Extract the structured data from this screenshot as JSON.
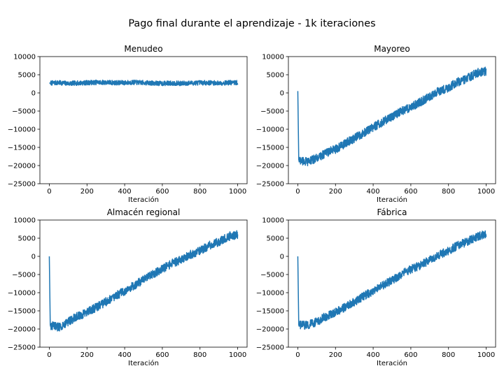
{
  "figure": {
    "suptitle": "Pago final durante el aprendizaje - 1k iteraciones"
  },
  "chart_data": [
    {
      "type": "line",
      "title": "Menudeo",
      "xlabel": "Iteración",
      "ylabel": "",
      "xlim": [
        -50,
        1050
      ],
      "ylim": [
        -25000,
        10000
      ],
      "xticks": [
        0,
        200,
        400,
        600,
        800,
        1000
      ],
      "yticks": [
        -25000,
        -20000,
        -15000,
        -10000,
        -5000,
        0,
        5000,
        10000
      ],
      "grid": false,
      "series_color": "#1f77b4",
      "series": [
        {
          "x": [
            0,
            50,
            100,
            150,
            200,
            250,
            300,
            350,
            400,
            450,
            500,
            550,
            600,
            650,
            700,
            750,
            800,
            850,
            900,
            950,
            1000
          ],
          "values": [
            2700,
            2800,
            2600,
            2700,
            2800,
            2900,
            2900,
            2800,
            2800,
            2900,
            2800,
            2700,
            2600,
            2700,
            2600,
            2700,
            2800,
            2800,
            2700,
            2800,
            2800
          ]
        }
      ]
    },
    {
      "type": "line",
      "title": "Mayoreo",
      "xlabel": "Iteración",
      "ylabel": "",
      "xlim": [
        -50,
        1050
      ],
      "ylim": [
        -25000,
        10000
      ],
      "xticks": [
        0,
        200,
        400,
        600,
        800,
        1000
      ],
      "yticks": [
        -25000,
        -20000,
        -15000,
        -10000,
        -5000,
        0,
        5000,
        10000
      ],
      "grid": false,
      "series_color": "#1f77b4",
      "series": [
        {
          "x": [
            0,
            5,
            10,
            50,
            100,
            150,
            200,
            250,
            300,
            350,
            400,
            450,
            500,
            550,
            600,
            650,
            700,
            750,
            800,
            850,
            900,
            950,
            1000
          ],
          "values": [
            500,
            -18500,
            -18500,
            -19000,
            -18000,
            -16500,
            -15500,
            -14000,
            -12500,
            -11000,
            -9500,
            -8000,
            -6500,
            -5000,
            -4000,
            -2500,
            -1000,
            500,
            1500,
            3000,
            4000,
            5500,
            6000
          ]
        }
      ]
    },
    {
      "type": "line",
      "title": "Almacén regional",
      "xlabel": "Iteración",
      "ylabel": "",
      "xlim": [
        -50,
        1050
      ],
      "ylim": [
        -25000,
        10000
      ],
      "xticks": [
        0,
        200,
        400,
        600,
        800,
        1000
      ],
      "yticks": [
        -25000,
        -20000,
        -15000,
        -10000,
        -5000,
        0,
        5000,
        10000
      ],
      "grid": false,
      "series_color": "#1f77b4",
      "series": [
        {
          "x": [
            0,
            5,
            10,
            50,
            100,
            150,
            200,
            250,
            300,
            350,
            400,
            450,
            500,
            550,
            600,
            650,
            700,
            750,
            800,
            850,
            900,
            950,
            1000
          ],
          "values": [
            0,
            -19000,
            -19000,
            -19500,
            -18000,
            -16500,
            -15500,
            -14000,
            -12500,
            -11000,
            -9500,
            -8000,
            -6500,
            -5000,
            -3500,
            -2000,
            -1000,
            500,
            1500,
            3000,
            4000,
            5500,
            6000
          ]
        }
      ]
    },
    {
      "type": "line",
      "title": "Fábrica",
      "xlabel": "Iteración",
      "ylabel": "",
      "xlim": [
        -50,
        1050
      ],
      "ylim": [
        -25000,
        10000
      ],
      "xticks": [
        0,
        200,
        400,
        600,
        800,
        1000
      ],
      "yticks": [
        -25000,
        -20000,
        -15000,
        -10000,
        -5000,
        0,
        5000,
        10000
      ],
      "grid": false,
      "series_color": "#1f77b4",
      "series": [
        {
          "x": [
            0,
            5,
            10,
            50,
            100,
            150,
            200,
            250,
            300,
            350,
            400,
            450,
            500,
            550,
            600,
            650,
            700,
            750,
            800,
            850,
            900,
            950,
            1000
          ],
          "values": [
            0,
            -19000,
            -19000,
            -19000,
            -18000,
            -16500,
            -15500,
            -14000,
            -12500,
            -11000,
            -9500,
            -8000,
            -6500,
            -5000,
            -3500,
            -2500,
            -1000,
            500,
            1500,
            3000,
            4000,
            5500,
            6000
          ]
        }
      ]
    }
  ]
}
